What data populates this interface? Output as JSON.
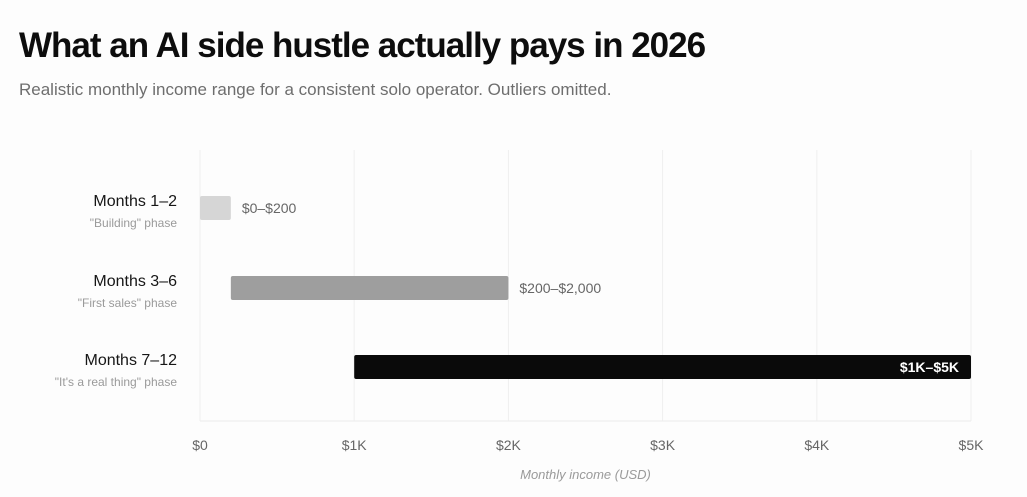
{
  "chart_data": {
    "type": "bar",
    "orientation": "horizontal",
    "title": "What an AI side hustle actually pays in 2026",
    "subtitle": "Realistic monthly income range for a consistent solo operator. Outliers omitted.",
    "xlabel": "Monthly income (USD)",
    "xlim": [
      0,
      5000
    ],
    "x_ticks": [
      0,
      1000,
      2000,
      3000,
      4000,
      5000
    ],
    "x_tick_labels": [
      "$0",
      "$1K",
      "$2K",
      "$3K",
      "$4K",
      "$5K"
    ],
    "grid": true,
    "legend": "none",
    "categories": [
      {
        "label": "Months 1–2",
        "sublabel": "\"Building\" phase",
        "low": 0,
        "high": 200,
        "value_label": "$0–$200",
        "color": "#d6d6d6",
        "label_inside": false
      },
      {
        "label": "Months 3–6",
        "sublabel": "\"First sales\" phase",
        "low": 200,
        "high": 2000,
        "value_label": "$200–$2,000",
        "color": "#9e9e9e",
        "label_inside": false
      },
      {
        "label": "Months 7–12",
        "sublabel": "\"It's a real thing\" phase",
        "low": 1000,
        "high": 5000,
        "value_label": "$1K–$5K",
        "color": "#0a0a0a",
        "label_inside": true
      }
    ]
  }
}
